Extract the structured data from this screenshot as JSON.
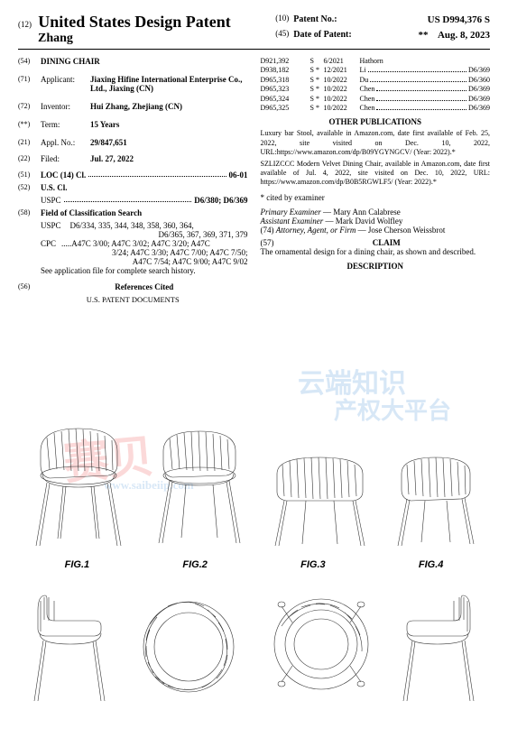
{
  "header": {
    "code12": "(12)",
    "title": "United States Design Patent",
    "surname": "Zhang",
    "code10": "(10)",
    "label10": "Patent No.:",
    "patentNo": "US D994,376 S",
    "code45": "(45)",
    "label45": "Date of Patent:",
    "stars": "**",
    "date": "Aug. 8, 2023"
  },
  "left": {
    "f54c": "(54)",
    "f54v": "DINING CHAIR",
    "f71c": "(71)",
    "f71l": "Applicant:",
    "f71v": "Jiaxing Hifine International Enterprise Co., Ltd., Jiaxing (CN)",
    "f72c": "(72)",
    "f72l": "Inventor:",
    "f72v": "Hui Zhang, Zhejiang (CN)",
    "fTc": "(**)",
    "fTl": "Term:",
    "fTv": "15 Years",
    "f21c": "(21)",
    "f21l": "Appl. No.:",
    "f21v": "29/847,651",
    "f22c": "(22)",
    "f22l": "Filed:",
    "f22v": "Jul. 27, 2022",
    "f51c": "(51)",
    "f51l": "LOC (14) Cl.",
    "f51v": "06-01",
    "f52c": "(52)",
    "f52l": "U.S. Cl.",
    "uspcL": "USPC",
    "uspcV": "D6/380; D6/369",
    "f58c": "(58)",
    "f58l": "Field of Classification Search",
    "uspc2L": "USPC",
    "uspc2a": "D6/334, 335, 344, 348, 358, 360, 364,",
    "uspc2b": "D6/365, 367, 369, 371, 379",
    "cpcL": "CPC",
    "cpc1": "A47C 3/00; A47C 3/02; A47C 3/20; A47C",
    "cpc2": "3/24; A47C 3/30; A47C 7/00; A47C 7/50;",
    "cpc3": "A47C 7/54; A47C 9/00; A47C 9/02",
    "seeApp": "See application file for complete search history.",
    "f56c": "(56)",
    "f56l": "References Cited",
    "usdocsHead": "U.S. PATENT DOCUMENTS"
  },
  "cites": [
    {
      "a": "D921,392",
      "b": "S",
      "c": "6/2021",
      "d": "Hathorn",
      "e": ""
    },
    {
      "a": "D938,182",
      "b": "S *",
      "c": "12/2021",
      "d": "Li",
      "e": "D6/369"
    },
    {
      "a": "D965,318",
      "b": "S *",
      "c": "10/2022",
      "d": "Du",
      "e": "D6/360"
    },
    {
      "a": "D965,323",
      "b": "S *",
      "c": "10/2022",
      "d": "Chen",
      "e": "D6/369"
    },
    {
      "a": "D965,324",
      "b": "S *",
      "c": "10/2022",
      "d": "Chen",
      "e": "D6/369"
    },
    {
      "a": "D965,325",
      "b": "S *",
      "c": "10/2022",
      "d": "Chen",
      "e": "D6/369"
    }
  ],
  "right": {
    "opHead": "OTHER PUBLICATIONS",
    "op1": "Luxury bar Stool, available in Amazon.com, date first available of Feb. 25, 2022, site visited on Dec. 10, 2022, URL:https://www.amazon.com/dp/B09YGYNGCV/ (Year: 2022).*",
    "op2": "SZLIZCCC Modern Velvet Dining Chair, available in Amazon.com, date first available of Jul. 4, 2022, site visited on Dec. 10, 2022, URL: https://www.amazon.com/dp/B0B5RGWLF5/ (Year: 2022).*",
    "citedBy": "* cited by examiner",
    "primExL": "Primary Examiner",
    "primExV": " — Mary Ann Calabrese",
    "asstExL": "Assistant Examiner",
    "asstExV": " — Mark David Wolfley",
    "attyC": "(74)",
    "attyL": "Attorney, Agent, or Firm",
    "attyV": " — Jose Cherson Weissbrot",
    "f57c": "(57)",
    "claimHead": "CLAIM",
    "claimTxt": "The ornamental design for a dining chair, as shown and described.",
    "descHead": "DESCRIPTION"
  },
  "figs": {
    "f1": "FIG.1",
    "f2": "FIG.2",
    "f3": "FIG.3",
    "f4": "FIG.4"
  },
  "watermarks": {
    "wm1": "赛贝",
    "wm2": "云端知识",
    "wm3": "产权大平台",
    "wm4": "www.saibeiip.com"
  },
  "style": {
    "pageWidth": 563,
    "pageHeight": 828,
    "bodyFontSize": 9,
    "headerTitleSize": 18,
    "textColor": "#000000",
    "bgColor": "#ffffff",
    "wmRed": "#e33333",
    "wmBlue": "#2a7dd1",
    "strokeColor": "#333333",
    "strokeWidth": 0.6
  }
}
